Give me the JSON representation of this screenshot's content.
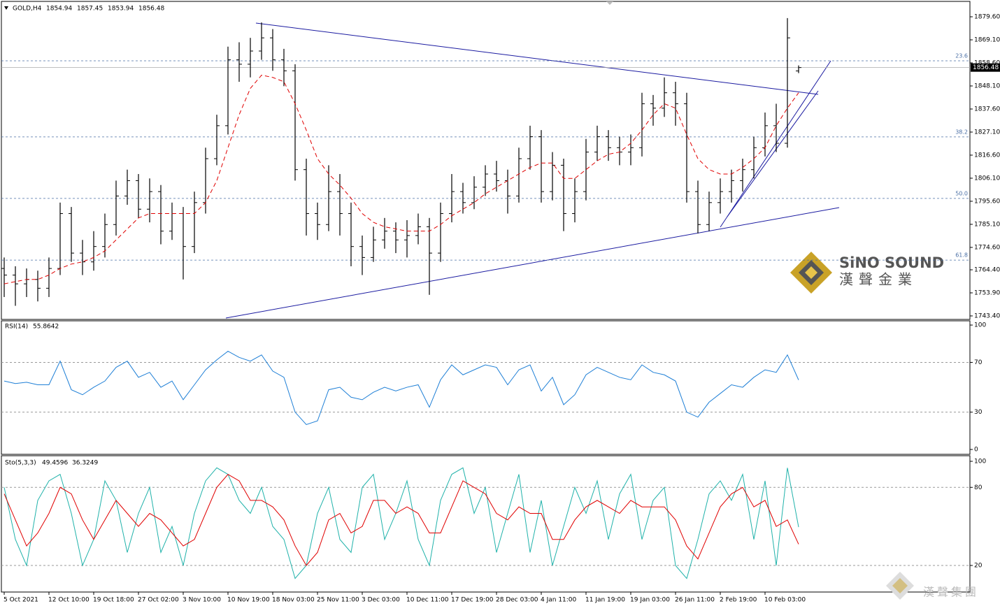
{
  "chart_data": [
    {
      "type": "candlestick",
      "title": "GOLD,H4",
      "color": "#000000",
      "categories": [
        "5 Oct 2021",
        null,
        null,
        null,
        "12 Oct 10:00",
        null,
        null,
        null,
        "19 Oct 18:00",
        null,
        null,
        null,
        "27 Oct 02:00",
        null,
        null,
        null,
        "3 Nov 10:00",
        null,
        null,
        null,
        "10 Nov 19:00",
        null,
        null,
        null,
        "18 Nov 03:00",
        null,
        null,
        null,
        "25 Nov 11:00",
        null,
        null,
        null,
        "3 Dec 03:00",
        null,
        null,
        null,
        "10 Dec 11:00",
        null,
        null,
        null,
        "17 Dec 19:00",
        null,
        null,
        null,
        "28 Dec 03:00",
        null,
        null,
        null,
        "4 Jan 11:00",
        null,
        null,
        null,
        "11 Jan 19:00",
        null,
        null,
        null,
        "19 Jan 03:00",
        null,
        null,
        null,
        "26 Jan 11:00",
        null,
        null,
        null,
        "2 Feb 19:00",
        null,
        null,
        null,
        "10 Feb 03:00",
        null,
        null,
        null
      ],
      "open": [
        1765,
        1762,
        1758,
        1760,
        1756,
        1765,
        1790,
        1772,
        1768,
        1775,
        1785,
        1798,
        1805,
        1792,
        1800,
        1782,
        1790,
        1775,
        1795,
        1815,
        1830,
        1860,
        1858,
        1864,
        1870,
        1860,
        1855,
        1810,
        1790,
        1785,
        1800,
        1790,
        1775,
        1770,
        1778,
        1782,
        1778,
        1780,
        1784,
        1772,
        1790,
        1800,
        1795,
        1802,
        1808,
        1805,
        1798,
        1815,
        1825,
        1800,
        1812,
        1790,
        1800,
        1818,
        1825,
        1820,
        1818,
        1820,
        1840,
        1838,
        1845,
        1840,
        1800,
        1785,
        1795,
        1800,
        1805,
        1810,
        1820,
        1830,
        1822,
        1854.94
      ],
      "high": [
        1770,
        1766,
        1765,
        1764,
        1770,
        1795,
        1793,
        1778,
        1782,
        1790,
        1805,
        1810,
        1808,
        1806,
        1803,
        1795,
        1793,
        1800,
        1820,
        1835,
        1866,
        1868,
        1870,
        1877,
        1874,
        1865,
        1858,
        1815,
        1795,
        1812,
        1808,
        1795,
        1780,
        1784,
        1788,
        1786,
        1787,
        1790,
        1788,
        1795,
        1808,
        1804,
        1807,
        1812,
        1814,
        1810,
        1820,
        1830,
        1828,
        1818,
        1815,
        1806,
        1824,
        1830,
        1828,
        1825,
        1826,
        1845,
        1844,
        1852,
        1850,
        1845,
        1805,
        1800,
        1806,
        1810,
        1815,
        1825,
        1836,
        1840,
        1879,
        1857.45
      ],
      "low": [
        1752,
        1748,
        1752,
        1750,
        1752,
        1762,
        1768,
        1762,
        1764,
        1770,
        1780,
        1794,
        1788,
        1786,
        1776,
        1778,
        1760,
        1772,
        1790,
        1812,
        1826,
        1850,
        1852,
        1860,
        1855,
        1848,
        1805,
        1780,
        1778,
        1782,
        1780,
        1766,
        1762,
        1768,
        1774,
        1772,
        1770,
        1776,
        1753,
        1768,
        1786,
        1790,
        1792,
        1798,
        1800,
        1790,
        1795,
        1810,
        1795,
        1796,
        1782,
        1786,
        1796,
        1814,
        1814,
        1812,
        1812,
        1816,
        1830,
        1834,
        1830,
        1795,
        1781,
        1782,
        1790,
        1795,
        1800,
        1806,
        1816,
        1818,
        1820,
        1853.94
      ],
      "close": [
        1762,
        1758,
        1760,
        1756,
        1765,
        1790,
        1772,
        1768,
        1775,
        1785,
        1798,
        1805,
        1792,
        1800,
        1782,
        1790,
        1775,
        1795,
        1815,
        1830,
        1860,
        1858,
        1864,
        1870,
        1860,
        1855,
        1810,
        1790,
        1785,
        1800,
        1790,
        1775,
        1770,
        1778,
        1782,
        1778,
        1780,
        1784,
        1772,
        1790,
        1800,
        1795,
        1802,
        1808,
        1805,
        1798,
        1815,
        1825,
        1800,
        1812,
        1790,
        1800,
        1818,
        1825,
        1820,
        1818,
        1820,
        1840,
        1838,
        1845,
        1840,
        1800,
        1785,
        1795,
        1800,
        1805,
        1810,
        1820,
        1830,
        1822,
        1870,
        1856.48
      ],
      "ma": {
        "color": "#e00000",
        "values": [
          1758,
          1759,
          1760,
          1760,
          1762,
          1765,
          1767,
          1768,
          1770,
          1773,
          1778,
          1783,
          1788,
          1790,
          1790,
          1790,
          1790,
          1790,
          1795,
          1805,
          1820,
          1835,
          1847,
          1853,
          1852,
          1850,
          1840,
          1828,
          1815,
          1808,
          1803,
          1797,
          1790,
          1786,
          1784,
          1783,
          1782,
          1782,
          1782,
          1785,
          1789,
          1792,
          1795,
          1799,
          1802,
          1805,
          1808,
          1811,
          1813,
          1813,
          1806,
          1806,
          1810,
          1814,
          1817,
          1818,
          1822,
          1828,
          1835,
          1840,
          1838,
          1826,
          1815,
          1810,
          1808,
          1808,
          1811,
          1815,
          1820,
          1830,
          1838,
          1845
        ]
      },
      "fib_levels": [
        {
          "value": 1859.55,
          "label": "23.6"
        },
        {
          "value": 1824.9,
          "label": "38.2"
        },
        {
          "value": 1796.9,
          "label": "50.0"
        },
        {
          "value": 1768.8,
          "label": "61.8"
        }
      ],
      "ylim": [
        1741.8,
        1886.6
      ],
      "yticks": [
        {
          "value": 1879.6,
          "label": "1879.60"
        },
        {
          "value": 1869.1,
          "label": "1869.10"
        },
        {
          "value": 1858.6,
          "label": "1858.60"
        },
        {
          "value": 1848.1,
          "label": "1848.10"
        },
        {
          "value": 1837.6,
          "label": "1837.60"
        },
        {
          "value": 1827.1,
          "label": "1827.10"
        },
        {
          "value": 1816.6,
          "label": "1816.60"
        },
        {
          "value": 1806.1,
          "label": "1806.10"
        },
        {
          "value": 1795.6,
          "label": "1795.60"
        },
        {
          "value": 1785.1,
          "label": "1785.10"
        },
        {
          "value": 1774.6,
          "label": "1774.60"
        },
        {
          "value": 1764.4,
          "label": "1764.40"
        },
        {
          "value": 1753.9,
          "label": "1753.90"
        },
        {
          "value": 1743.4,
          "label": "1743.40"
        }
      ]
    },
    {
      "type": "line",
      "title": "RSI(14)",
      "color": "#1e7fd6",
      "values": [
        55,
        53,
        54,
        52,
        52,
        71,
        48,
        44,
        50,
        55,
        66,
        71,
        58,
        62,
        50,
        55,
        40,
        52,
        64,
        72,
        79,
        74,
        71,
        76,
        63,
        58,
        30,
        20,
        23,
        48,
        50,
        42,
        40,
        46,
        50,
        47,
        50,
        52,
        34,
        56,
        68,
        60,
        64,
        68,
        66,
        52,
        64,
        68,
        47,
        58,
        36,
        44,
        60,
        66,
        62,
        58,
        56,
        68,
        62,
        60,
        55,
        30,
        26,
        38,
        45,
        52,
        50,
        58,
        64,
        62,
        76,
        55.8642
      ],
      "levels": [
        30,
        70
      ],
      "ylim": [
        -3.9,
        103.4
      ],
      "yticks": [
        0,
        30,
        70,
        100
      ]
    },
    {
      "type": "line",
      "title": "Sto(5,3,3)",
      "series": [
        {
          "color": "#20b2aa",
          "values": [
            80,
            40,
            20,
            70,
            85,
            90,
            60,
            20,
            40,
            85,
            70,
            30,
            60,
            80,
            30,
            50,
            20,
            60,
            85,
            95,
            90,
            70,
            60,
            80,
            50,
            40,
            10,
            20,
            60,
            80,
            40,
            30,
            80,
            90,
            40,
            60,
            85,
            40,
            20,
            70,
            90,
            95,
            60,
            80,
            30,
            60,
            90,
            30,
            70,
            20,
            50,
            80,
            60,
            85,
            40,
            75,
            90,
            40,
            70,
            80,
            20,
            10,
            40,
            75,
            85,
            70,
            90,
            40,
            85,
            20,
            95,
            49.4596
          ]
        },
        {
          "color": "#e00000",
          "values": [
            75,
            55,
            35,
            45,
            60,
            80,
            75,
            55,
            40,
            55,
            70,
            60,
            50,
            60,
            55,
            45,
            35,
            40,
            60,
            80,
            90,
            85,
            70,
            70,
            65,
            55,
            35,
            20,
            30,
            55,
            60,
            45,
            50,
            70,
            70,
            60,
            65,
            60,
            45,
            45,
            65,
            85,
            80,
            75,
            60,
            55,
            65,
            60,
            60,
            40,
            40,
            55,
            65,
            70,
            65,
            60,
            70,
            65,
            65,
            65,
            55,
            35,
            25,
            45,
            65,
            75,
            80,
            65,
            70,
            50,
            55,
            36.3249
          ]
        }
      ],
      "levels": [
        20,
        80
      ],
      "ylim": [
        -0.4,
        104.3
      ],
      "yticks": [
        20,
        80,
        100
      ]
    }
  ],
  "watermark": {
    "brand": "SiNO SOUND",
    "brand_cn": "漢聲金業",
    "footer": "漢聲集團"
  }
}
